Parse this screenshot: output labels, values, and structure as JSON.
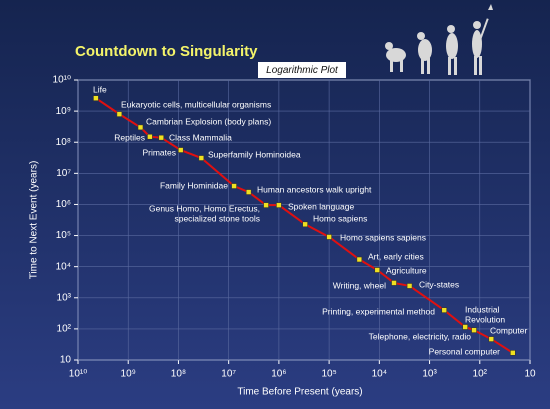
{
  "chart_data": {
    "type": "line",
    "title": "Countdown to Singularity",
    "subtitle": "Logarithmic Plot",
    "x_label": "Time Before Present (years)",
    "y_label": "Time to Next Event (years)",
    "x_scale": "log",
    "y_scale": "log",
    "xlim": [
      10000000000,
      10
    ],
    "ylim": [
      10,
      10000000000
    ],
    "xticks": [
      {
        "value": 10000000000,
        "label": "10¹⁰"
      },
      {
        "value": 1000000000,
        "label": "10⁹"
      },
      {
        "value": 100000000,
        "label": "10⁸"
      },
      {
        "value": 10000000,
        "label": "10⁷"
      },
      {
        "value": 1000000,
        "label": "10⁶"
      },
      {
        "value": 100000,
        "label": "10⁵"
      },
      {
        "value": 10000,
        "label": "10⁴"
      },
      {
        "value": 1000,
        "label": "10³"
      },
      {
        "value": 100,
        "label": "10²"
      },
      10
    ],
    "yticks": [
      10,
      {
        "value": 100,
        "label": "10²"
      },
      {
        "value": 1000,
        "label": "10³"
      },
      {
        "value": 10000,
        "label": "10⁴"
      },
      {
        "value": 100000,
        "label": "10⁵"
      },
      {
        "value": 1000000,
        "label": "10⁶"
      },
      {
        "value": 10000000,
        "label": "10⁷"
      },
      {
        "value": 100000000,
        "label": "10⁸"
      },
      {
        "value": 1000000000,
        "label": "10⁹"
      },
      {
        "value": 10000000000,
        "label": "10¹⁰"
      }
    ],
    "grid": true,
    "color": "#e01010",
    "marker_color": "#f0e020",
    "x": [
      4400000000,
      1500000000,
      570000000,
      370000000,
      220000000,
      90000000,
      35000000,
      7800000,
      4000000,
      1800000,
      1000000,
      300000,
      100000,
      25000,
      11000,
      5100,
      2500,
      510,
      195,
      130,
      59,
      22
    ],
    "values": [
      2600000000,
      800000000,
      300000000,
      150000000,
      140000000,
      56000000,
      31000000,
      3900000,
      2500000,
      950000,
      950000,
      230000,
      90000,
      17000,
      7800,
      3000,
      2400,
      400,
      115,
      91,
      47,
      17
    ],
    "labels": [
      [
        "Life"
      ],
      [
        "Eukaryotic cells, multicellular organisms"
      ],
      [
        "Cambrian Explosion (body plans)"
      ],
      [
        "Reptiles"
      ],
      [
        "Class Mammalia"
      ],
      [
        "Primates"
      ],
      [
        "Superfamily Hominoidea"
      ],
      [
        "Family Hominidae"
      ],
      [
        "Human ancestors walk upright"
      ],
      [
        "Genus Homo, Homo Erectus,",
        "specialized stone tools"
      ],
      [
        "Spoken language"
      ],
      [
        "Homo sapiens"
      ],
      [
        "Homo sapiens sapiens"
      ],
      [
        "Art, early cities"
      ],
      [
        "Agriculture"
      ],
      [
        "Writing, wheel"
      ],
      [
        "City-states"
      ],
      [
        "Printing, experimental method"
      ],
      [
        "Industrial",
        "Revolution"
      ],
      [
        "Telephone, electricity, radio"
      ],
      [
        "Computer"
      ],
      [
        "Personal computer"
      ]
    ]
  }
}
